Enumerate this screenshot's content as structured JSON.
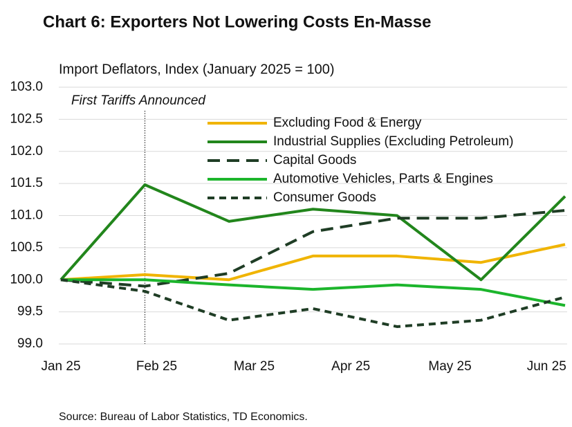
{
  "chart_data": {
    "type": "line",
    "title": "Chart 6: Exporters Not Lowering Costs En-Masse",
    "subtitle": "Import Deflators, Index (January 2025 = 100)",
    "annotation": {
      "text": "First Tariffs Announced",
      "x": 1
    },
    "source": "Source: Bureau of Labor Statistics, TD Economics.",
    "x": [
      0,
      1,
      2,
      3,
      4,
      5,
      6
    ],
    "xlim": [
      0,
      6
    ],
    "xticks": [
      {
        "value": 0,
        "label": "Jan 25"
      },
      {
        "value": 1.14,
        "label": "Feb 25"
      },
      {
        "value": 2.3,
        "label": "Mar 25"
      },
      {
        "value": 3.45,
        "label": "Apr 25"
      },
      {
        "value": 4.63,
        "label": "May 25"
      },
      {
        "value": 5.78,
        "label": "Jun 25"
      }
    ],
    "ylim": [
      99.0,
      103.0
    ],
    "yticks": [
      {
        "value": 99.0,
        "label": "99.0"
      },
      99.5,
      {
        "value": 100.0,
        "label": "100.0"
      },
      100.5,
      {
        "value": 101.0,
        "label": "101.0"
      },
      101.5,
      {
        "value": 102.0,
        "label": "102.0"
      },
      102.5,
      {
        "value": 103.0,
        "label": "103.0"
      }
    ],
    "grid": true,
    "legend": "top-right",
    "series": [
      {
        "name": "Excluding Food & Energy",
        "color": "#f0b400",
        "dash": "solid",
        "values": [
          100.0,
          100.08,
          100.0,
          100.37,
          100.37,
          100.27,
          100.55
        ]
      },
      {
        "name": "Industrial Supplies (Excluding Petroleum)",
        "color": "#22861c",
        "dash": "solid",
        "values": [
          100.0,
          101.48,
          100.91,
          101.1,
          101.0,
          100.0,
          101.3
        ]
      },
      {
        "name": "Capital Goods",
        "color": "#1f3d25",
        "dash": "long",
        "values": [
          100.0,
          99.9,
          100.1,
          100.75,
          100.96,
          100.96,
          101.08
        ]
      },
      {
        "name": "Automotive Vehicles, Parts & Engines",
        "color": "#1cb52c",
        "dash": "solid",
        "values": [
          100.0,
          100.0,
          99.92,
          99.85,
          99.92,
          99.85,
          99.6
        ]
      },
      {
        "name": "Consumer Goods",
        "color": "#1f3d25",
        "dash": "short",
        "values": [
          100.0,
          99.82,
          99.37,
          99.55,
          99.27,
          99.37,
          99.73
        ]
      }
    ]
  }
}
